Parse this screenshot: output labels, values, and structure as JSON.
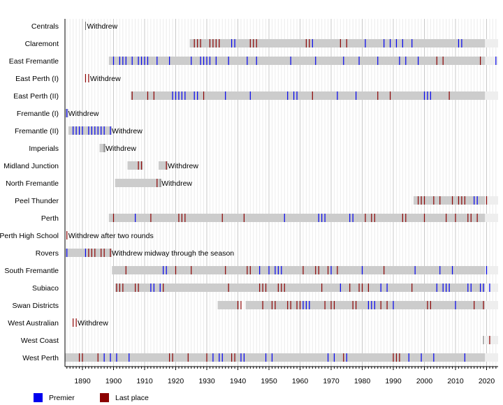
{
  "chart_data": {
    "type": "timeline",
    "xlim": [
      1884.5,
      2023.5
    ],
    "x_ticks": [
      1890,
      1900,
      1910,
      1920,
      1930,
      1940,
      1950,
      1960,
      1970,
      1980,
      1990,
      2000,
      2010,
      2020
    ],
    "grid": "vertical, minor every year, major every 10 years",
    "colors": {
      "premier": "#0000ee",
      "last": "#8b0000",
      "bar": "#cccccc",
      "current": "#eeeeee",
      "withdrew": "#666666"
    },
    "legend": [
      {
        "label": "Premier",
        "color": "#0000ee"
      },
      {
        "label": "Last place",
        "color": "#8b0000"
      }
    ],
    "legend_placement": "bottom-left",
    "teams": [
      {
        "name": "Centrals",
        "bars": [],
        "withdrew": 1891,
        "note": "Withdrew",
        "premier": [],
        "last": []
      },
      {
        "name": "Claremont",
        "bars": [
          [
            1925,
            2019
          ]
        ],
        "current": true,
        "premier": [
          1938,
          1939,
          1964,
          1981,
          1987,
          1989,
          1991,
          1993,
          1996,
          2011,
          2012
        ],
        "last": [
          1926,
          1927,
          1928,
          1931,
          1932,
          1933,
          1934,
          1944,
          1945,
          1946,
          1962,
          1963,
          1973,
          1975
        ]
      },
      {
        "name": "East Fremantle",
        "bars": [
          [
            1899,
            2019
          ]
        ],
        "current": true,
        "premier": [
          1900,
          1902,
          1903,
          1904,
          1906,
          1908,
          1909,
          1910,
          1911,
          1914,
          1918,
          1925,
          1928,
          1929,
          1930,
          1931,
          1933,
          1937,
          1943,
          1946,
          1957,
          1965,
          1974,
          1979,
          1985,
          1992,
          1994,
          1998,
          2023
        ],
        "last": [
          2004,
          2006,
          2018
        ]
      },
      {
        "name": "East Perth (I)",
        "bars": [],
        "note": "Withdrew",
        "premier": [],
        "last": [
          1891,
          1892
        ]
      },
      {
        "name": "East Perth (II)",
        "bars": [
          [
            1906,
            2019
          ]
        ],
        "current": true,
        "premier": [
          1919,
          1920,
          1921,
          1922,
          1923,
          1926,
          1927,
          1936,
          1944,
          1956,
          1958,
          1959,
          1972,
          1978,
          2000,
          2001,
          2002
        ],
        "last": [
          1906,
          1911,
          1913,
          1929,
          1964,
          1985,
          1989,
          2008
        ]
      },
      {
        "name": "Fremantle (I)",
        "bars": [
          [
            1885,
            1885
          ]
        ],
        "note": "Withdrew",
        "premier": [
          1885
        ],
        "last": []
      },
      {
        "name": "Fremantle (II)",
        "bars": [
          [
            1886,
            1899
          ]
        ],
        "withdrew": 1899,
        "note": "Withdrew",
        "premier": [
          1887,
          1888,
          1889,
          1890,
          1892,
          1893,
          1894,
          1895,
          1896,
          1897,
          1899
        ],
        "last": []
      },
      {
        "name": "Imperials",
        "bars": [
          [
            1896,
            1897
          ]
        ],
        "withdrew": 1897,
        "note": "Withdrew",
        "premier": [],
        "last": []
      },
      {
        "name": "Midland Junction",
        "bars": [
          [
            1905,
            1909
          ],
          [
            1915,
            1917
          ]
        ],
        "note": "Withdrew",
        "premier": [],
        "last": [
          1908,
          1909,
          1917
        ]
      },
      {
        "name": "North Fremantle",
        "bars": [
          [
            1901,
            1915
          ]
        ],
        "withdrew": 1915,
        "note": "Withdrew",
        "premier": [],
        "last": [
          1914
        ]
      },
      {
        "name": "Peel Thunder",
        "bars": [
          [
            1997,
            2019
          ]
        ],
        "current": true,
        "premier": [
          2016,
          2017
        ],
        "last": [
          1998,
          1999,
          2000,
          2003,
          2005,
          2009,
          2011,
          2012,
          2013,
          2020
        ]
      },
      {
        "name": "Perth",
        "bars": [
          [
            1899,
            2019
          ]
        ],
        "current": true,
        "premier": [
          1907,
          1955,
          1966,
          1967,
          1968,
          1976,
          1977
        ],
        "last": [
          1900,
          1912,
          1921,
          1922,
          1923,
          1935,
          1942,
          1981,
          1983,
          1984,
          1993,
          1994,
          2000,
          2007,
          2010,
          2014,
          2015,
          2017
        ]
      },
      {
        "name": "Perth High School",
        "bars": [],
        "note": "Withdrew after two rounds",
        "premier": [],
        "last": [
          1885
        ]
      },
      {
        "name": "Rovers",
        "bars": [
          [
            1885,
            1899
          ]
        ],
        "note": "Withdrew midway through the season",
        "premier": [
          1885,
          1891
        ],
        "last": [
          1892,
          1893,
          1894,
          1896,
          1897,
          1899
        ]
      },
      {
        "name": "South Fremantle",
        "bars": [
          [
            1900,
            2019
          ]
        ],
        "current": true,
        "premier": [
          1916,
          1917,
          1947,
          1950,
          1952,
          1953,
          1954,
          1970,
          1980,
          1997,
          2005,
          2009,
          2020
        ],
        "last": [
          1904,
          1920,
          1925,
          1936,
          1943,
          1944,
          1961,
          1965,
          1966,
          1969,
          1972,
          1987
        ]
      },
      {
        "name": "Subiaco",
        "bars": [
          [
            1901,
            2019
          ]
        ],
        "current": true,
        "premier": [
          1912,
          1913,
          1915,
          1973,
          1986,
          1988,
          2004,
          2006,
          2007,
          2008,
          2014,
          2015,
          2018,
          2019,
          2021
        ],
        "last": [
          1901,
          1902,
          1903,
          1907,
          1908,
          1916,
          1937,
          1947,
          1948,
          1949,
          1953,
          1954,
          1955,
          1967,
          1976,
          1979,
          1980,
          1982,
          1996
        ]
      },
      {
        "name": "Swan Districts",
        "bars": [
          [
            1934,
            1940
          ],
          [
            1943,
            2019
          ]
        ],
        "current": true,
        "premier": [
          1961,
          1962,
          1963,
          1982,
          1983,
          1984,
          1990,
          2010
        ],
        "last": [
          1940,
          1941,
          1948,
          1951,
          1952,
          1956,
          1957,
          1959,
          1960,
          1968,
          1970,
          1971,
          1977,
          1978,
          1986,
          1988,
          2001,
          2002,
          2016,
          2019
        ]
      },
      {
        "name": "West Australian",
        "bars": [],
        "note": "Withdrew",
        "premier": [],
        "last": [
          1887,
          1888
        ]
      },
      {
        "name": "West Coast",
        "bars": [],
        "current": true,
        "withdrew": 2019,
        "premier": [],
        "last": [
          2021
        ]
      },
      {
        "name": "West Perth",
        "bars": [
          [
            1885,
            2019
          ]
        ],
        "current": true,
        "premier": [
          1897,
          1899,
          1901,
          1905,
          1932,
          1934,
          1935,
          1941,
          1942,
          1949,
          1951,
          1969,
          1971,
          1975,
          1995,
          1999,
          2003,
          2013
        ],
        "last": [
          1889,
          1890,
          1895,
          1918,
          1919,
          1924,
          1930,
          1938,
          1939,
          1974,
          1990,
          1991,
          1992
        ]
      }
    ]
  }
}
